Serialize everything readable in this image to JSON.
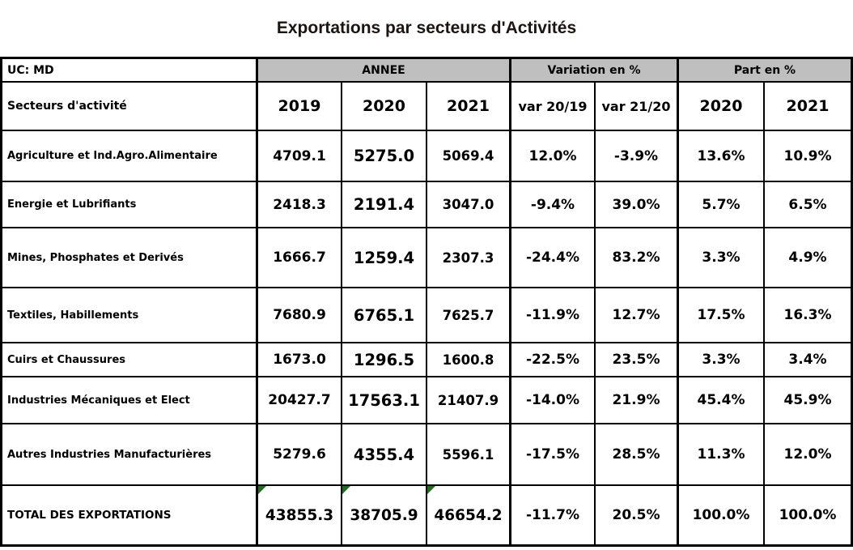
{
  "title": "Exportations par secteurs d'Activités",
  "colors": {
    "header_fill": "#bfbfbf",
    "border": "#000000",
    "title_text": "#1c1410",
    "error_marker_green": "#1e701e"
  },
  "chart_data": {
    "type": "table",
    "title": "Exportations par secteurs d'Activités",
    "unit_label": "UC: MD",
    "group_headers": {
      "annee": "ANNEE",
      "variation": "Variation en %",
      "part": "Part en %"
    },
    "column_headers": {
      "sector": "Secteurs d'activité",
      "years": [
        "2019",
        "2020",
        "2021"
      ],
      "variations": [
        "var 20/19",
        "var 21/20"
      ],
      "parts": [
        "2020",
        "2021"
      ]
    },
    "rows": [
      {
        "label": "Agriculture et Ind.Agro.Alimentaire",
        "values": [
          "4709.1",
          "5275.0",
          "5069.4",
          "12.0%",
          "-3.9%",
          "13.6%",
          "10.9%"
        ]
      },
      {
        "label": "Energie et Lubrifiants",
        "values": [
          "2418.3",
          "2191.4",
          "3047.0",
          "-9.4%",
          "39.0%",
          "5.7%",
          "6.5%"
        ]
      },
      {
        "label": "Mines, Phosphates et Derivés",
        "values": [
          "1666.7",
          "1259.4",
          "2307.3",
          "-24.4%",
          "83.2%",
          "3.3%",
          "4.9%"
        ]
      },
      {
        "label": "Textiles, Habillements",
        "values": [
          "7680.9",
          "6765.1",
          "7625.7",
          "-11.9%",
          "12.7%",
          "17.5%",
          "16.3%"
        ]
      },
      {
        "label": "Cuirs et Chaussures",
        "values": [
          "1673.0",
          "1296.5",
          "1600.8",
          "-22.5%",
          "23.5%",
          "3.3%",
          "3.4%"
        ]
      },
      {
        "label": "Industries Mécaniques et Elect",
        "values": [
          "20427.7",
          "17563.1",
          "21407.9",
          "-14.0%",
          "21.9%",
          "45.4%",
          "45.9%"
        ]
      },
      {
        "label": "Autres Industries Manufacturières",
        "values": [
          "5279.6",
          "4355.4",
          "5596.1",
          "-17.5%",
          "28.5%",
          "11.3%",
          "12.0%"
        ]
      },
      {
        "label": "TOTAL DES EXPORTATIONS",
        "values": [
          "43855.3",
          "38705.9",
          "46654.2",
          "-11.7%",
          "20.5%",
          "100.0%",
          "100.0%"
        ],
        "is_total": true,
        "error_marker_cols": [
          0,
          1,
          2
        ]
      }
    ]
  }
}
